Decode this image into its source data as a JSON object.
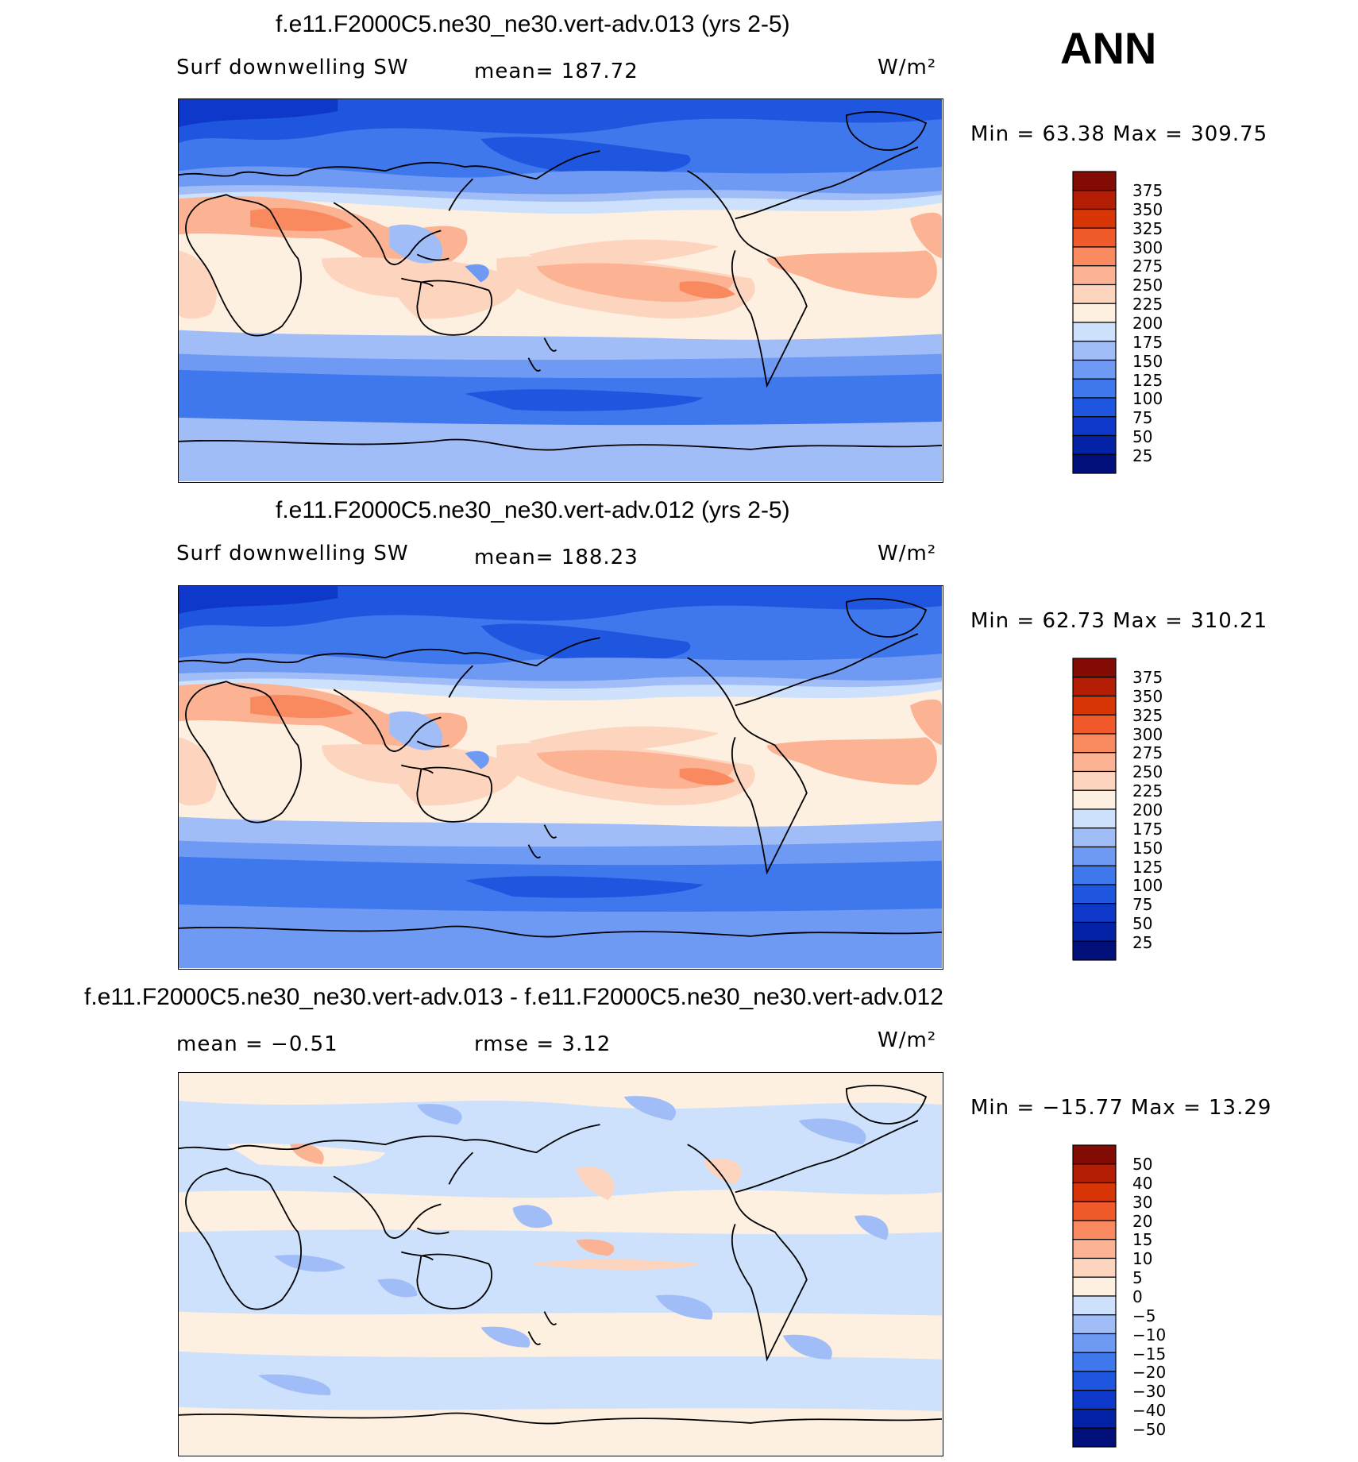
{
  "season": "ANN",
  "palettes": {
    "field": [
      "#000f7a",
      "#0422a6",
      "#0e38c9",
      "#1f56e0",
      "#3f78ed",
      "#6e9af4",
      "#a0bdf8",
      "#cde0fc",
      "#fdf0e0",
      "#fdd5bf",
      "#fcb393",
      "#f9895f",
      "#f15a2b",
      "#d93608",
      "#b21d04",
      "#820b03"
    ],
    "diff": [
      "#000f7a",
      "#0422a6",
      "#0e38c9",
      "#1f56e0",
      "#3f78ed",
      "#6e9af4",
      "#a0bdf8",
      "#cde0fc",
      "#fdf0e0",
      "#fdd5bf",
      "#fcb393",
      "#f9895f",
      "#f15a2b",
      "#d93608",
      "#b21d04",
      "#820b03"
    ]
  },
  "panels": [
    {
      "title": "f.e11.F2000C5.ne30_ne30.vert-adv.013 (yrs 2-5)",
      "left_label": "Surf downwelling SW",
      "center_label": "mean=  187.72",
      "units": "W/m²",
      "minmax": "Min =   63.38 Max =  309.75",
      "colorbar_labels": [
        "375",
        "350",
        "325",
        "300",
        "275",
        "250",
        "225",
        "200",
        "175",
        "150",
        "125",
        "100",
        "75",
        "50",
        "25"
      ],
      "palette": "field"
    },
    {
      "title": "f.e11.F2000C5.ne30_ne30.vert-adv.012 (yrs 2-5)",
      "left_label": "Surf downwelling SW",
      "center_label": "mean=  188.23",
      "units": "W/m²",
      "minmax": "Min =   62.73 Max =  310.21",
      "colorbar_labels": [
        "375",
        "350",
        "325",
        "300",
        "275",
        "250",
        "225",
        "200",
        "175",
        "150",
        "125",
        "100",
        "75",
        "50",
        "25"
      ],
      "palette": "field"
    },
    {
      "title": "f.e11.F2000C5.ne30_ne30.vert-adv.013 - f.e11.F2000C5.ne30_ne30.vert-adv.012",
      "left_label": "mean =   −0.51",
      "center_label": "rmse =    3.12",
      "units": "W/m²",
      "minmax": "Min = −15.77 Max =   13.29",
      "colorbar_labels": [
        "50",
        "40",
        "30",
        "20",
        "15",
        "10",
        "5",
        "0",
        "−5",
        "−10",
        "−15",
        "−20",
        "−30",
        "−40",
        "−50"
      ],
      "palette": "diff"
    }
  ]
}
